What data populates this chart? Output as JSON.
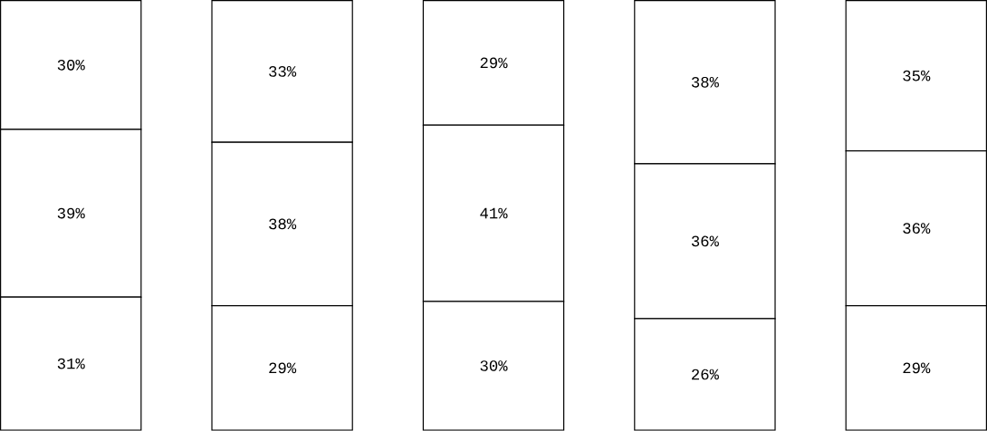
{
  "chart_data": {
    "type": "bar",
    "stacked": true,
    "categories": [
      null,
      null,
      null,
      null,
      null
    ],
    "series": [
      {
        "color": "#ffffff",
        "values": [
          31,
          29,
          30,
          26,
          29
        ],
        "value_labels": [
          "31%",
          "29%",
          "30%",
          "26%",
          "29%"
        ]
      },
      {
        "color": "#ffffff",
        "values": [
          39,
          38,
          41,
          36,
          36
        ],
        "value_labels": [
          "39%",
          "38%",
          "41%",
          "36%",
          "36%"
        ]
      },
      {
        "color": "#ffffff",
        "values": [
          30,
          33,
          29,
          38,
          35
        ],
        "value_labels": [
          "30%",
          "33%",
          "29%",
          "38%",
          "35%"
        ]
      }
    ]
  }
}
